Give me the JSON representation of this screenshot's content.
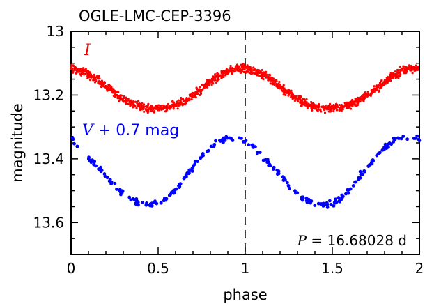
{
  "chart_data": {
    "type": "scatter",
    "title": "OGLE-LMC-CEP-3396",
    "xlabel": "phase",
    "ylabel": "magnitude",
    "xlim": [
      0,
      2
    ],
    "ylim": [
      13.7,
      13.0
    ],
    "y_inverted": true,
    "x_ticks": [
      "0",
      "0.5",
      "1",
      "1.5",
      "2"
    ],
    "y_ticks": [
      "13",
      "13.2",
      "13.4",
      "13.6"
    ],
    "reference_line": {
      "x": 1,
      "style": "dashed"
    },
    "series": [
      {
        "name_parts": {
          "symbol": "I",
          "rest": ""
        },
        "color": "#ff0000",
        "x": [
          0.0,
          0.05,
          0.1,
          0.15,
          0.2,
          0.25,
          0.3,
          0.35,
          0.4,
          0.45,
          0.5,
          0.55,
          0.6,
          0.65,
          0.7,
          0.75,
          0.8,
          0.85,
          0.9,
          0.95,
          1.0,
          1.05,
          1.1,
          1.15,
          1.2,
          1.25,
          1.3,
          1.35,
          1.4,
          1.45,
          1.5,
          1.55,
          1.6,
          1.65,
          1.7,
          1.75,
          1.8,
          1.85,
          1.9,
          1.95,
          2.0
        ],
        "y": [
          13.117,
          13.122,
          13.134,
          13.152,
          13.173,
          13.194,
          13.213,
          13.228,
          13.237,
          13.241,
          13.241,
          13.238,
          13.23,
          13.218,
          13.2,
          13.18,
          13.159,
          13.14,
          13.125,
          13.117,
          13.117,
          13.122,
          13.134,
          13.152,
          13.173,
          13.194,
          13.213,
          13.228,
          13.237,
          13.241,
          13.241,
          13.238,
          13.23,
          13.218,
          13.2,
          13.18,
          13.159,
          13.14,
          13.125,
          13.117,
          13.117
        ]
      },
      {
        "name_parts": {
          "symbol": "V",
          "rest": " + 0.7 mag"
        },
        "color": "#0000ff",
        "x": [
          0.0,
          0.05,
          0.1,
          0.15,
          0.2,
          0.25,
          0.3,
          0.35,
          0.4,
          0.45,
          0.5,
          0.55,
          0.6,
          0.65,
          0.7,
          0.75,
          0.8,
          0.85,
          0.9,
          0.95,
          1.0,
          1.05,
          1.1,
          1.15,
          1.2,
          1.25,
          1.3,
          1.35,
          1.4,
          1.45,
          1.5,
          1.55,
          1.6,
          1.65,
          1.7,
          1.75,
          1.8,
          1.85,
          1.9,
          1.95,
          2.0
        ],
        "y": [
          13.34,
          13.365,
          13.395,
          13.425,
          13.455,
          13.485,
          13.51,
          13.528,
          13.54,
          13.545,
          13.54,
          13.525,
          13.495,
          13.46,
          13.425,
          13.395,
          13.365,
          13.345,
          13.335,
          13.338,
          13.34,
          13.365,
          13.395,
          13.425,
          13.455,
          13.485,
          13.51,
          13.528,
          13.54,
          13.545,
          13.54,
          13.525,
          13.495,
          13.46,
          13.425,
          13.395,
          13.365,
          13.345,
          13.335,
          13.338,
          13.34
        ]
      }
    ],
    "annotation": {
      "symbol": "P",
      "text": " = 16.68028 d"
    }
  }
}
